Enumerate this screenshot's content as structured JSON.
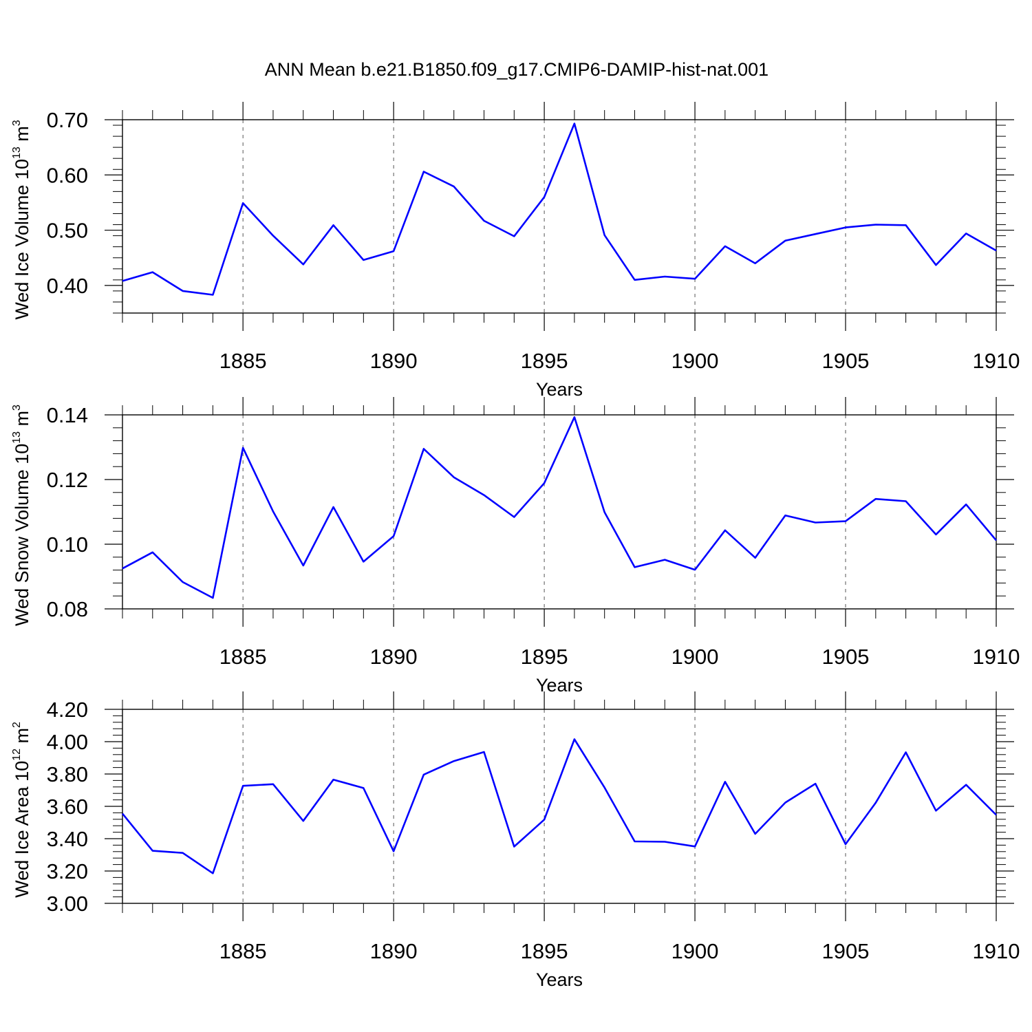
{
  "title": "ANN Mean b.e21.B1850.f09_g17.CMIP6-DAMIP-hist-nat.001",
  "line_color": "#0000ff",
  "chart_data": [
    {
      "type": "line",
      "xlabel": "Years",
      "ylabel": {
        "base": "Wed Ice Volume 10",
        "exp": "13",
        "unit": " m",
        "unit_exp": "3"
      },
      "xlim": [
        1881,
        1910
      ],
      "ylim": [
        0.35,
        0.7
      ],
      "xticks": [
        1885,
        1890,
        1895,
        1900,
        1905,
        1910
      ],
      "xtick_labels": [
        "1885",
        "1890",
        "1895",
        "1900",
        "1905",
        "1910"
      ],
      "yticks": [
        0.4,
        0.5,
        0.6,
        0.7
      ],
      "ytick_labels": [
        "0.40",
        "0.50",
        "0.60",
        "0.70"
      ],
      "grid": "vertical dashed at major x ticks",
      "x": [
        1881,
        1882,
        1883,
        1884,
        1885,
        1886,
        1887,
        1888,
        1889,
        1890,
        1891,
        1892,
        1893,
        1894,
        1895,
        1896,
        1897,
        1898,
        1899,
        1900,
        1901,
        1902,
        1903,
        1904,
        1905,
        1906,
        1907,
        1908,
        1909,
        1910
      ],
      "values": [
        0.408,
        0.424,
        0.39,
        0.383,
        0.549,
        0.49,
        0.438,
        0.509,
        0.446,
        0.462,
        0.606,
        0.579,
        0.517,
        0.489,
        0.56,
        0.693,
        0.491,
        0.41,
        0.416,
        0.412,
        0.471,
        0.44,
        0.481,
        0.493,
        0.505,
        0.51,
        0.509,
        0.437,
        0.494,
        0.463
      ]
    },
    {
      "type": "line",
      "xlabel": "Years",
      "ylabel": {
        "base": "Wed Snow Volume 10",
        "exp": "13",
        "unit": " m",
        "unit_exp": "3"
      },
      "xlim": [
        1881,
        1910
      ],
      "ylim": [
        0.08,
        0.14
      ],
      "xticks": [
        1885,
        1890,
        1895,
        1900,
        1905,
        1910
      ],
      "xtick_labels": [
        "1885",
        "1890",
        "1895",
        "1900",
        "1905",
        "1910"
      ],
      "yticks": [
        0.08,
        0.1,
        0.12,
        0.14
      ],
      "ytick_labels": [
        "0.08",
        "0.10",
        "0.12",
        "0.14"
      ],
      "grid": "vertical dashed at major x ticks",
      "x": [
        1881,
        1882,
        1883,
        1884,
        1885,
        1886,
        1887,
        1888,
        1889,
        1890,
        1891,
        1892,
        1893,
        1894,
        1895,
        1896,
        1897,
        1898,
        1899,
        1900,
        1901,
        1902,
        1903,
        1904,
        1905,
        1906,
        1907,
        1908,
        1909,
        1910
      ],
      "values": [
        0.0925,
        0.0975,
        0.0883,
        0.0834,
        0.1298,
        0.1101,
        0.0934,
        0.1115,
        0.0946,
        0.1025,
        0.1295,
        0.1207,
        0.1152,
        0.1084,
        0.1189,
        0.1393,
        0.1099,
        0.0929,
        0.0952,
        0.0921,
        0.1043,
        0.0958,
        0.1089,
        0.1067,
        0.1071,
        0.114,
        0.1133,
        0.103,
        0.1123,
        0.1012
      ]
    },
    {
      "type": "line",
      "xlabel": "Years",
      "ylabel": {
        "base": "Wed Ice Area 10",
        "exp": "12",
        "unit": " m",
        "unit_exp": "2"
      },
      "xlim": [
        1881,
        1910
      ],
      "ylim": [
        3.0,
        4.2
      ],
      "xticks": [
        1885,
        1890,
        1895,
        1900,
        1905,
        1910
      ],
      "xtick_labels": [
        "1885",
        "1890",
        "1895",
        "1900",
        "1905",
        "1910"
      ],
      "yticks": [
        3.0,
        3.2,
        3.4,
        3.6,
        3.8,
        4.0,
        4.2
      ],
      "ytick_labels": [
        "3.00",
        "3.20",
        "3.40",
        "3.60",
        "3.80",
        "4.00",
        "4.20"
      ],
      "grid": "vertical dashed at major x ticks",
      "x": [
        1881,
        1882,
        1883,
        1884,
        1885,
        1886,
        1887,
        1888,
        1889,
        1890,
        1891,
        1892,
        1893,
        1894,
        1895,
        1896,
        1897,
        1898,
        1899,
        1900,
        1901,
        1902,
        1903,
        1904,
        1905,
        1906,
        1907,
        1908,
        1909,
        1910
      ],
      "values": [
        3.555,
        3.325,
        3.312,
        3.186,
        3.727,
        3.737,
        3.51,
        3.765,
        3.713,
        3.322,
        3.796,
        3.88,
        3.936,
        3.351,
        3.518,
        4.015,
        3.716,
        3.383,
        3.381,
        3.352,
        3.752,
        3.43,
        3.623,
        3.74,
        3.366,
        3.622,
        3.934,
        3.573,
        3.733,
        3.547
      ]
    }
  ]
}
